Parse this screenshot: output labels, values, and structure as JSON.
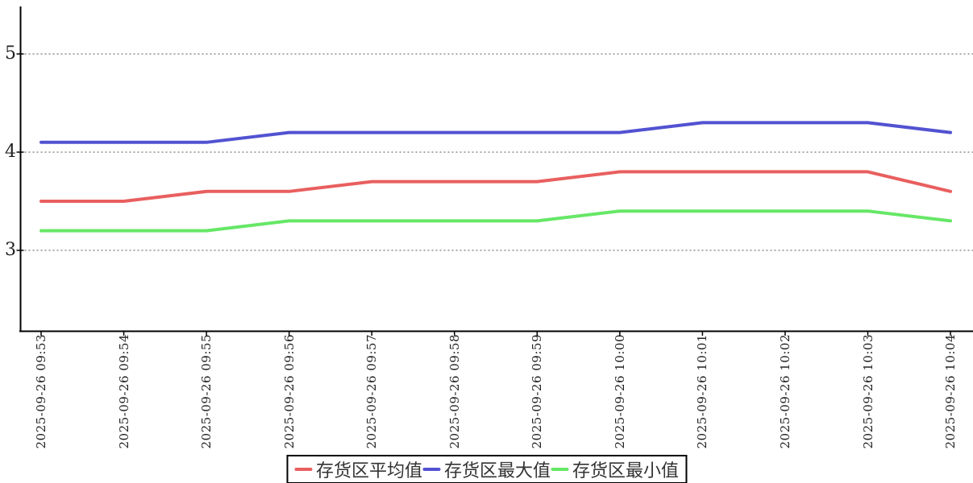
{
  "chart_data": {
    "type": "line",
    "title": "",
    "xlabel": "",
    "ylabel": "",
    "x": [
      "2025-09-26 09:53",
      "2025-09-26 09:54",
      "2025-09-26 09:55",
      "2025-09-26 09:56",
      "2025-09-26 09:57",
      "2025-09-26 09:58",
      "2025-09-26 09:59",
      "2025-09-26 10:00",
      "2025-09-26 10:01",
      "2025-09-26 10:02",
      "2025-09-26 10:03",
      "2025-09-26 10:04"
    ],
    "series": [
      {
        "name": "存货区平均值",
        "color": "#e95f5f",
        "values": [
          3.5,
          3.5,
          3.6,
          3.6,
          3.7,
          3.7,
          3.7,
          3.8,
          3.8,
          3.8,
          3.8,
          3.6
        ]
      },
      {
        "name": "存货区最大值",
        "color": "#5252d2",
        "values": [
          4.1,
          4.1,
          4.1,
          4.2,
          4.2,
          4.2,
          4.2,
          4.2,
          4.3,
          4.3,
          4.3,
          4.2
        ]
      },
      {
        "name": "存货区最小值",
        "color": "#66e766",
        "values": [
          3.2,
          3.2,
          3.2,
          3.3,
          3.3,
          3.3,
          3.3,
          3.4,
          3.4,
          3.4,
          3.4,
          3.3
        ]
      }
    ],
    "yticks": [
      3,
      4,
      5
    ],
    "ylim": [
      2.18,
      5.48
    ],
    "grid": "horizontal-dotted",
    "legend_position": "bottom-center",
    "colors": {
      "axis": "#000000",
      "grid": "#555555",
      "tick_text": "#222222",
      "legend_text": "#333333",
      "background": "#ffffff"
    }
  }
}
